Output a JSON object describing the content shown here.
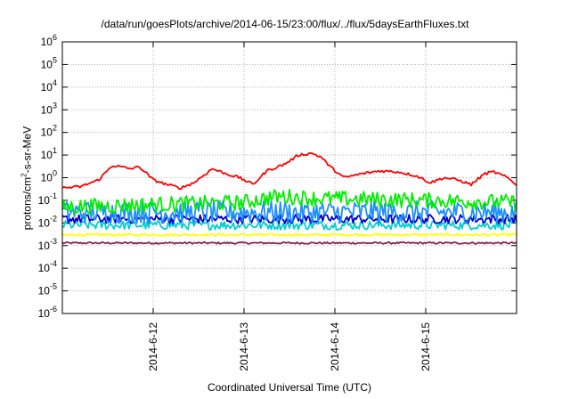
{
  "chart_data": {
    "type": "line",
    "title": "/data/run/goesPlots/archive/2014-06-15/23:00/flux/../flux/5daysEarthFluxes.txt",
    "xlabel": "Coordinated Universal Time (UTC)",
    "ylabel": {
      "prefix": "protons/cm",
      "sup": "2",
      "suffix": "-s-sr-MeV"
    },
    "yscale": "log",
    "ylim": [
      1e-06,
      1000000.0
    ],
    "yticks": [
      {
        "base": "10",
        "exp": "6"
      },
      {
        "base": "10",
        "exp": "5"
      },
      {
        "base": "10",
        "exp": "4"
      },
      {
        "base": "10",
        "exp": "3"
      },
      {
        "base": "10",
        "exp": "2"
      },
      {
        "base": "10",
        "exp": "1"
      },
      {
        "base": "10",
        "exp": "0"
      },
      {
        "base": "10",
        "exp": "-1"
      },
      {
        "base": "10",
        "exp": "-2"
      },
      {
        "base": "10",
        "exp": "-3"
      },
      {
        "base": "10",
        "exp": "-4"
      },
      {
        "base": "10",
        "exp": "-5"
      },
      {
        "base": "10",
        "exp": "-6"
      }
    ],
    "xlim": [
      11.0,
      16.0
    ],
    "xticks": [
      {
        "label": "2014-6-12",
        "day": 12
      },
      {
        "label": "2014-6-13",
        "day": 13
      },
      {
        "label": "2014-6-14",
        "day": 14
      },
      {
        "label": "2014-6-15",
        "day": 15
      }
    ],
    "grid": true,
    "series": [
      {
        "color": "#ff0000",
        "x": [
          11.0,
          11.2,
          11.4,
          11.55,
          11.75,
          11.85,
          12.0,
          12.15,
          12.3,
          12.45,
          12.65,
          12.8,
          12.95,
          13.1,
          13.25,
          13.45,
          13.6,
          13.75,
          13.85,
          13.95,
          14.1,
          14.3,
          14.5,
          14.7,
          14.9,
          15.05,
          15.2,
          15.35,
          15.5,
          15.65,
          15.75,
          15.9,
          16.0
        ],
        "values": [
          0.35,
          0.4,
          0.8,
          3.5,
          2.5,
          3.0,
          0.8,
          0.5,
          0.35,
          0.6,
          2.5,
          1.5,
          1.0,
          0.5,
          2.0,
          4.0,
          10.0,
          12.0,
          8.0,
          3.0,
          1.0,
          1.5,
          2.0,
          1.8,
          1.2,
          0.6,
          1.0,
          0.8,
          0.5,
          1.5,
          1.8,
          1.0,
          0.5
        ]
      },
      {
        "color": "#00ee00",
        "avg": 0.08,
        "amp": 0.35,
        "trend": [
          [
            11.0,
            0.05
          ],
          [
            13.0,
            0.08
          ],
          [
            13.4,
            0.15
          ],
          [
            13.8,
            0.12
          ],
          [
            15.0,
            0.1
          ],
          [
            16.0,
            0.08
          ]
        ]
      },
      {
        "color": "#1e90ff",
        "avg": 0.03,
        "amp": 0.5
      },
      {
        "color": "#0000cd",
        "avg": 0.015,
        "amp": 0.2
      },
      {
        "color": "#00ced1",
        "avg": 0.008,
        "amp": 0.2
      },
      {
        "color": "#ffff00",
        "avg": 0.003,
        "amp": 0.05
      },
      {
        "color": "#8b2252",
        "avg": 0.0013,
        "amp": 0.04
      }
    ]
  }
}
